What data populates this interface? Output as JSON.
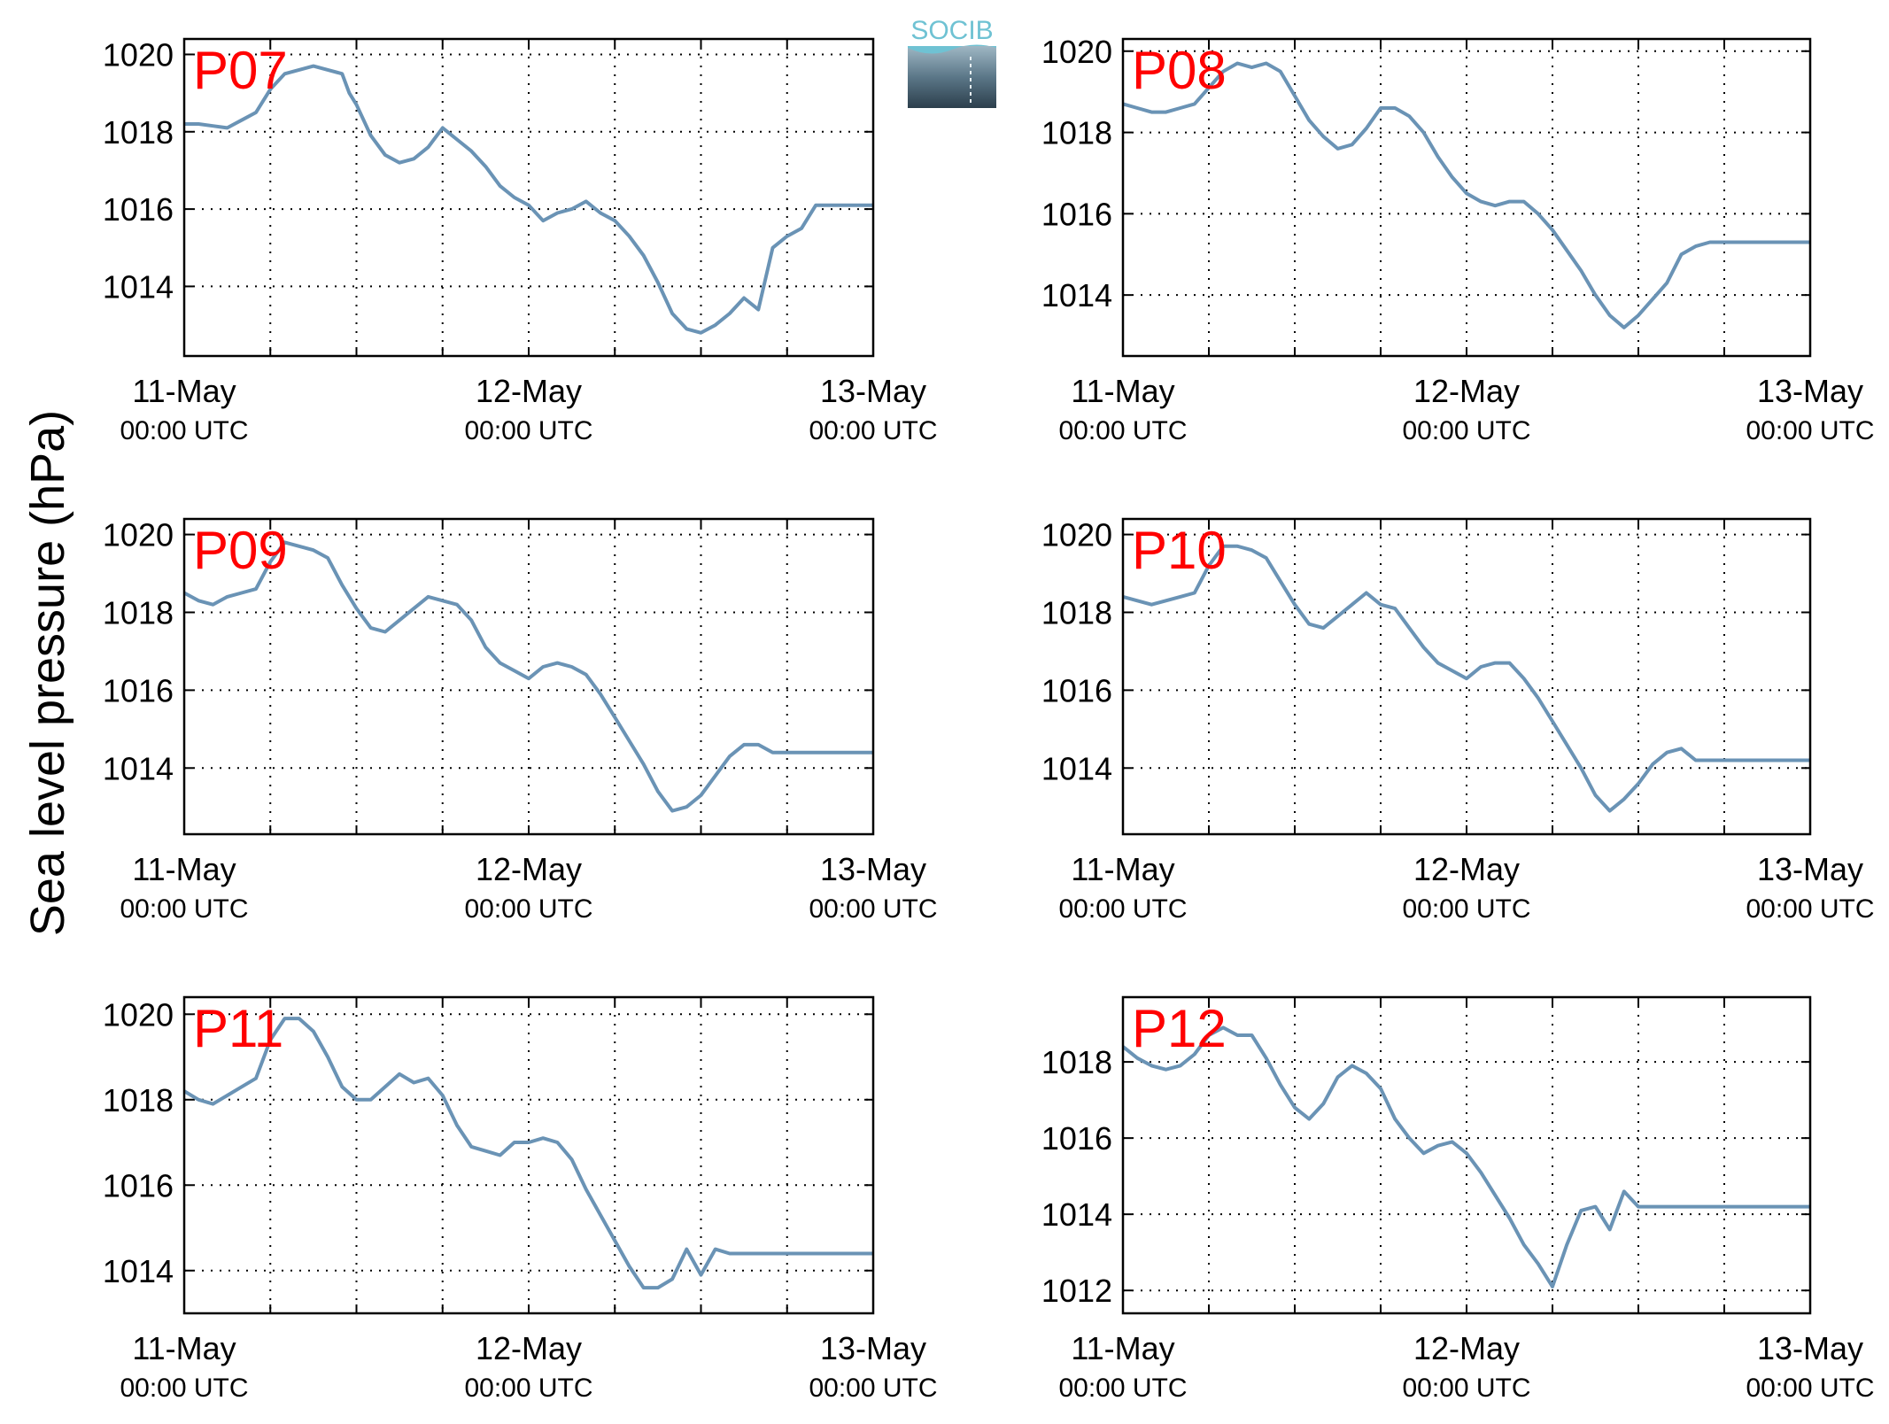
{
  "figure": {
    "ylabel": "Sea level pressure (hPa)",
    "logo_text": "SOCIB",
    "line_color": "#6a93b5",
    "station_label_color": "#ff0000",
    "grid": "dotted"
  },
  "chart_data": [
    {
      "type": "line",
      "station": "P07",
      "xlim": [
        0,
        48
      ],
      "ylim": [
        1012.2,
        1020.4
      ],
      "yticks": [
        1014,
        1016,
        1018,
        1020
      ],
      "xticks": [
        {
          "x": 0,
          "date": "11-May",
          "time": "00:00 UTC"
        },
        {
          "x": 24,
          "date": "12-May",
          "time": "00:00 UTC"
        },
        {
          "x": 48,
          "date": "13-May",
          "time": "00:00 UTC"
        }
      ],
      "x_hours_since_11_May_00UTC": [
        0,
        1,
        2,
        3,
        3.5,
        4,
        5,
        6,
        7,
        8,
        9,
        10,
        11,
        11.5,
        12,
        13,
        14,
        15,
        16,
        17,
        18,
        19,
        20,
        21,
        22,
        23,
        24,
        25,
        26,
        27,
        28,
        29,
        30,
        31,
        32,
        33,
        34,
        35,
        36,
        37,
        38,
        39,
        40,
        41,
        42,
        43,
        44,
        44.5,
        45,
        45.5,
        46,
        46.5,
        47,
        47.5,
        48
      ],
      "values": [
        1018.2,
        1018.2,
        1018.15,
        1018.1,
        1018.2,
        1018.3,
        1018.5,
        1019.1,
        1019.5,
        1019.6,
        1019.7,
        1019.6,
        1019.5,
        1019.0,
        1018.7,
        1017.9,
        1017.4,
        1017.2,
        1017.3,
        1017.6,
        1018.1,
        1017.8,
        1017.5,
        1017.1,
        1016.6,
        1016.3,
        1016.1,
        1015.7,
        1015.9,
        1016.0,
        1016.2,
        1015.9,
        1015.7,
        1015.3,
        1014.8,
        1014.1,
        1013.3,
        1012.9,
        1012.8,
        1013.0,
        1013.3,
        1013.7,
        1013.4,
        1015.0,
        1015.3,
        1015.5,
        1016.1,
        1016.1,
        1016.1,
        1016.1,
        1016.1,
        1016.1,
        1016.1,
        1016.1,
        1016.1
      ]
    },
    {
      "type": "line",
      "station": "P08",
      "xlim": [
        0,
        48
      ],
      "ylim": [
        1012.5,
        1020.3
      ],
      "yticks": [
        1014,
        1016,
        1018,
        1020
      ],
      "xticks": [
        {
          "x": 0,
          "date": "11-May",
          "time": "00:00 UTC"
        },
        {
          "x": 24,
          "date": "12-May",
          "time": "00:00 UTC"
        },
        {
          "x": 48,
          "date": "13-May",
          "time": "00:00 UTC"
        }
      ],
      "x_hours_since_11_May_00UTC": [
        0,
        1,
        2,
        3,
        4,
        5,
        6,
        7,
        8,
        9,
        10,
        11,
        12,
        13,
        14,
        15,
        16,
        17,
        18,
        19,
        20,
        21,
        22,
        23,
        24,
        25,
        26,
        27,
        28,
        29,
        30,
        31,
        32,
        33,
        34,
        35,
        36,
        37,
        38,
        39,
        40,
        41,
        42,
        43,
        44,
        45,
        46,
        47,
        48
      ],
      "values": [
        1018.7,
        1018.6,
        1018.5,
        1018.5,
        1018.6,
        1018.7,
        1019.1,
        1019.5,
        1019.7,
        1019.6,
        1019.7,
        1019.5,
        1018.9,
        1018.3,
        1017.9,
        1017.6,
        1017.7,
        1018.1,
        1018.6,
        1018.6,
        1018.4,
        1018.0,
        1017.4,
        1016.9,
        1016.5,
        1016.3,
        1016.2,
        1016.3,
        1016.3,
        1016.0,
        1015.6,
        1015.1,
        1014.6,
        1014.0,
        1013.5,
        1013.2,
        1013.5,
        1013.9,
        1014.3,
        1015.0,
        1015.2,
        1015.3,
        1015.3,
        1015.3,
        1015.3,
        1015.3,
        1015.3,
        1015.3,
        1015.3
      ]
    },
    {
      "type": "line",
      "station": "P09",
      "xlim": [
        0,
        48
      ],
      "ylim": [
        1012.3,
        1020.4
      ],
      "yticks": [
        1014,
        1016,
        1018,
        1020
      ],
      "xticks": [
        {
          "x": 0,
          "date": "11-May",
          "time": "00:00 UTC"
        },
        {
          "x": 24,
          "date": "12-May",
          "time": "00:00 UTC"
        },
        {
          "x": 48,
          "date": "13-May",
          "time": "00:00 UTC"
        }
      ],
      "x_hours_since_11_May_00UTC": [
        0,
        1,
        2,
        3,
        4,
        5,
        6,
        7,
        8,
        9,
        10,
        11,
        12,
        13,
        14,
        15,
        16,
        17,
        18,
        19,
        20,
        21,
        22,
        23,
        24,
        25,
        26,
        27,
        28,
        29,
        30,
        31,
        32,
        33,
        34,
        35,
        36,
        37,
        38,
        39,
        40,
        41,
        42,
        43,
        44,
        45,
        46,
        47,
        48
      ],
      "values": [
        1018.5,
        1018.3,
        1018.2,
        1018.4,
        1018.5,
        1018.6,
        1019.3,
        1019.8,
        1019.7,
        1019.6,
        1019.4,
        1018.7,
        1018.1,
        1017.6,
        1017.5,
        1017.8,
        1018.1,
        1018.4,
        1018.3,
        1018.2,
        1017.8,
        1017.1,
        1016.7,
        1016.5,
        1016.3,
        1016.6,
        1016.7,
        1016.6,
        1016.4,
        1015.9,
        1015.3,
        1014.7,
        1014.1,
        1013.4,
        1012.9,
        1013.0,
        1013.3,
        1013.8,
        1014.3,
        1014.6,
        1014.6,
        1014.4,
        1014.4,
        1014.4,
        1014.4,
        1014.4,
        1014.4,
        1014.4,
        1014.4
      ]
    },
    {
      "type": "line",
      "station": "P10",
      "xlim": [
        0,
        48
      ],
      "ylim": [
        1012.3,
        1020.4
      ],
      "yticks": [
        1014,
        1016,
        1018,
        1020
      ],
      "xticks": [
        {
          "x": 0,
          "date": "11-May",
          "time": "00:00 UTC"
        },
        {
          "x": 24,
          "date": "12-May",
          "time": "00:00 UTC"
        },
        {
          "x": 48,
          "date": "13-May",
          "time": "00:00 UTC"
        }
      ],
      "x_hours_since_11_May_00UTC": [
        0,
        1,
        2,
        3,
        4,
        5,
        6,
        7,
        8,
        9,
        10,
        11,
        12,
        13,
        14,
        15,
        16,
        17,
        18,
        19,
        20,
        21,
        22,
        23,
        24,
        25,
        26,
        27,
        28,
        29,
        30,
        31,
        32,
        33,
        34,
        35,
        36,
        37,
        38,
        39,
        40,
        41,
        42,
        43,
        44,
        45,
        46,
        47,
        48
      ],
      "values": [
        1018.4,
        1018.3,
        1018.2,
        1018.3,
        1018.4,
        1018.5,
        1019.2,
        1019.7,
        1019.7,
        1019.6,
        1019.4,
        1018.8,
        1018.2,
        1017.7,
        1017.6,
        1017.9,
        1018.2,
        1018.5,
        1018.2,
        1018.1,
        1017.6,
        1017.1,
        1016.7,
        1016.5,
        1016.3,
        1016.6,
        1016.7,
        1016.7,
        1016.3,
        1015.8,
        1015.2,
        1014.6,
        1014.0,
        1013.3,
        1012.9,
        1013.2,
        1013.6,
        1014.1,
        1014.4,
        1014.5,
        1014.2,
        1014.2,
        1014.2,
        1014.2,
        1014.2,
        1014.2,
        1014.2,
        1014.2,
        1014.2
      ]
    },
    {
      "type": "line",
      "station": "P11",
      "xlim": [
        0,
        48
      ],
      "ylim": [
        1013.0,
        1020.4
      ],
      "yticks": [
        1014,
        1016,
        1018,
        1020
      ],
      "xticks": [
        {
          "x": 0,
          "date": "11-May",
          "time": "00:00 UTC"
        },
        {
          "x": 24,
          "date": "12-May",
          "time": "00:00 UTC"
        },
        {
          "x": 48,
          "date": "13-May",
          "time": "00:00 UTC"
        }
      ],
      "x_hours_since_11_May_00UTC": [
        0,
        1,
        2,
        3,
        4,
        5,
        6,
        7,
        8,
        9,
        10,
        11,
        12,
        13,
        14,
        15,
        16,
        17,
        18,
        19,
        20,
        21,
        22,
        23,
        24,
        25,
        26,
        27,
        28,
        29,
        30,
        31,
        32,
        33,
        34,
        35,
        36,
        37,
        38,
        39,
        40,
        41,
        42,
        43,
        44,
        45,
        46,
        47,
        48
      ],
      "values": [
        1018.2,
        1018.0,
        1017.9,
        1018.1,
        1018.3,
        1018.5,
        1019.4,
        1019.9,
        1019.9,
        1019.6,
        1019.0,
        1018.3,
        1018.0,
        1018.0,
        1018.3,
        1018.6,
        1018.4,
        1018.5,
        1018.1,
        1017.4,
        1016.9,
        1016.8,
        1016.7,
        1017.0,
        1017.0,
        1017.1,
        1017.0,
        1016.6,
        1015.9,
        1015.3,
        1014.7,
        1014.1,
        1013.6,
        1013.6,
        1013.8,
        1014.5,
        1013.9,
        1014.5,
        1014.4,
        1014.4,
        1014.4,
        1014.4,
        1014.4,
        1014.4,
        1014.4,
        1014.4,
        1014.4,
        1014.4,
        1014.4
      ]
    },
    {
      "type": "line",
      "station": "P12",
      "xlim": [
        0,
        48
      ],
      "ylim": [
        1011.4,
        1019.7
      ],
      "yticks": [
        1012,
        1014,
        1016,
        1018
      ],
      "xticks": [
        {
          "x": 0,
          "date": "11-May",
          "time": "00:00 UTC"
        },
        {
          "x": 24,
          "date": "12-May",
          "time": "00:00 UTC"
        },
        {
          "x": 48,
          "date": "13-May",
          "time": "00:00 UTC"
        }
      ],
      "x_hours_since_11_May_00UTC": [
        0,
        1,
        2,
        3,
        4,
        5,
        6,
        7,
        8,
        9,
        10,
        11,
        12,
        13,
        14,
        15,
        16,
        17,
        18,
        19,
        20,
        21,
        22,
        23,
        24,
        25,
        26,
        27,
        28,
        29,
        30,
        31,
        32,
        33,
        34,
        35,
        36,
        37,
        38,
        39,
        40,
        41,
        42,
        43,
        44,
        45,
        46,
        47,
        48
      ],
      "values": [
        1018.4,
        1018.1,
        1017.9,
        1017.8,
        1017.9,
        1018.2,
        1018.7,
        1018.9,
        1018.7,
        1018.7,
        1018.1,
        1017.4,
        1016.8,
        1016.5,
        1016.9,
        1017.6,
        1017.9,
        1017.7,
        1017.3,
        1016.5,
        1016.0,
        1015.6,
        1015.8,
        1015.9,
        1015.6,
        1015.1,
        1014.5,
        1013.9,
        1013.2,
        1012.7,
        1012.1,
        1013.2,
        1014.1,
        1014.2,
        1013.6,
        1014.6,
        1014.2,
        1014.2,
        1014.2,
        1014.2,
        1014.2,
        1014.2,
        1014.2,
        1014.2,
        1014.2,
        1014.2,
        1014.2,
        1014.2,
        1014.2
      ]
    }
  ]
}
